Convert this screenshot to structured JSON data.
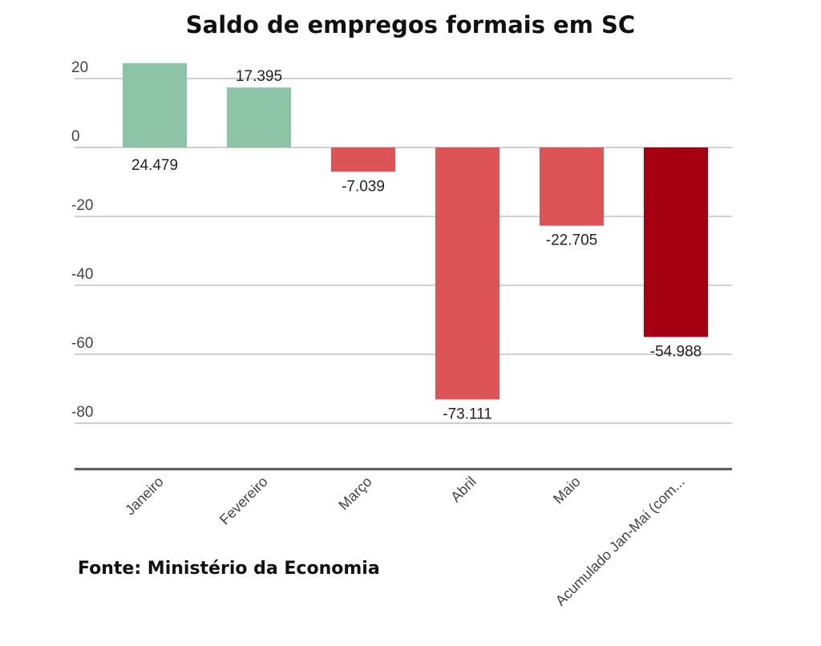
{
  "chart_data": {
    "type": "bar",
    "title": "Saldo de empregos formais em SC",
    "source": "Fonte: Ministério da Economia",
    "categories": [
      "Janeiro",
      "Fevereiro",
      "Março",
      "Abril",
      "Maio",
      "Acumulado Jan-Mai (com..."
    ],
    "values": [
      24.479,
      17.395,
      -7.039,
      -73.111,
      -22.705,
      -54.988
    ],
    "data_labels": [
      "24.479",
      "17.395",
      "-7.039",
      "-73.111",
      "-22.705",
      "-54.988"
    ],
    "bar_colors": [
      "#8dc3a7",
      "#8dc3a7",
      "#dc5456",
      "#dc5456",
      "#dc5456",
      "#a50012"
    ],
    "yticks": [
      20,
      0,
      -20,
      -40,
      -60,
      -80
    ],
    "ylim": [
      -93.3,
      25
    ],
    "xlabel": "",
    "ylabel": "",
    "grid": true,
    "legend": "none"
  }
}
